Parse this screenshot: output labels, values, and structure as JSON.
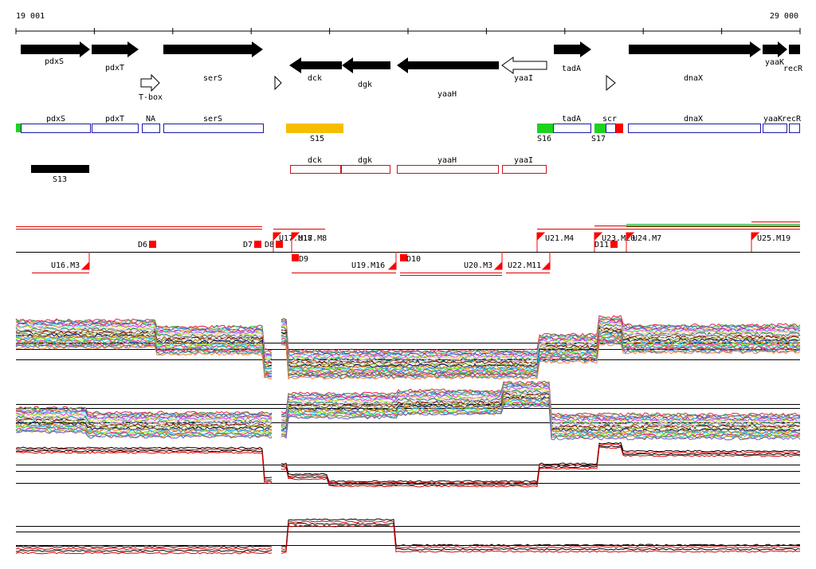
{
  "coordinates": {
    "start_label": "19 001",
    "end_label": "29 000"
  },
  "genes": [
    {
      "label": "pdxS",
      "strand": "+",
      "style": "filled"
    },
    {
      "label": "pdxT",
      "strand": "+",
      "style": "filled"
    },
    {
      "label": "serS",
      "strand": "+",
      "style": "filled"
    },
    {
      "label": "dck",
      "strand": "-",
      "style": "filled"
    },
    {
      "label": "dgk",
      "strand": "-",
      "style": "filled"
    },
    {
      "label": "yaaH",
      "strand": "-",
      "style": "filled"
    },
    {
      "label": "yaaI",
      "strand": "-",
      "style": "open"
    },
    {
      "label": "tadA",
      "strand": "+",
      "style": "filled"
    },
    {
      "label": "dnaX",
      "strand": "+",
      "style": "filled"
    },
    {
      "label": "yaaK",
      "strand": "+",
      "style": "filled"
    },
    {
      "label": "recR",
      "strand": "+",
      "style": "filled"
    }
  ],
  "features": [
    {
      "label": "T-box",
      "type": "riboswitch"
    },
    {
      "label": "",
      "type": "terminator"
    },
    {
      "label": "",
      "type": "terminator"
    }
  ],
  "plus_track": {
    "boxes": [
      "pdxS",
      "pdxT",
      "NA",
      "serS",
      "tadA",
      "scr",
      "dnaX",
      "yaaK",
      "recR"
    ],
    "segments": [
      "S15",
      "S16",
      "S17"
    ]
  },
  "minus_track": {
    "boxes": [
      "dck",
      "dgk",
      "yaaH",
      "yaaI"
    ],
    "segments": [
      "S13"
    ]
  },
  "breakpoints_upper": [
    "D6",
    "D7",
    "D8",
    "U17.M17",
    "U18.M8",
    "U21.M4",
    "U23.M20",
    "D11",
    "U24.M7",
    "U25.M19"
  ],
  "breakpoints_lower": [
    "U16.M3",
    "D9",
    "U19.M16",
    "D10",
    "U20.M3",
    "U22.M11"
  ],
  "profile_panels": [
    "plus-strand-conditions",
    "minus-strand-conditions",
    "plus-strand-summary",
    "minus-strand-summary"
  ],
  "colors": {
    "gene_fill": "#000000",
    "box_plus": "#1a1aa8",
    "box_minus": "#c8141e",
    "segment_S15": "#f5be00",
    "segment_S13": "#000000",
    "segment_S16": "#1ed21e",
    "segment_S17": "#1ed21e",
    "scr_end": "#ff0000",
    "breakpoint": "#ff0000",
    "dark_line": "#000000",
    "red_line": "#e00000",
    "green_line": "#2a9a2a"
  }
}
